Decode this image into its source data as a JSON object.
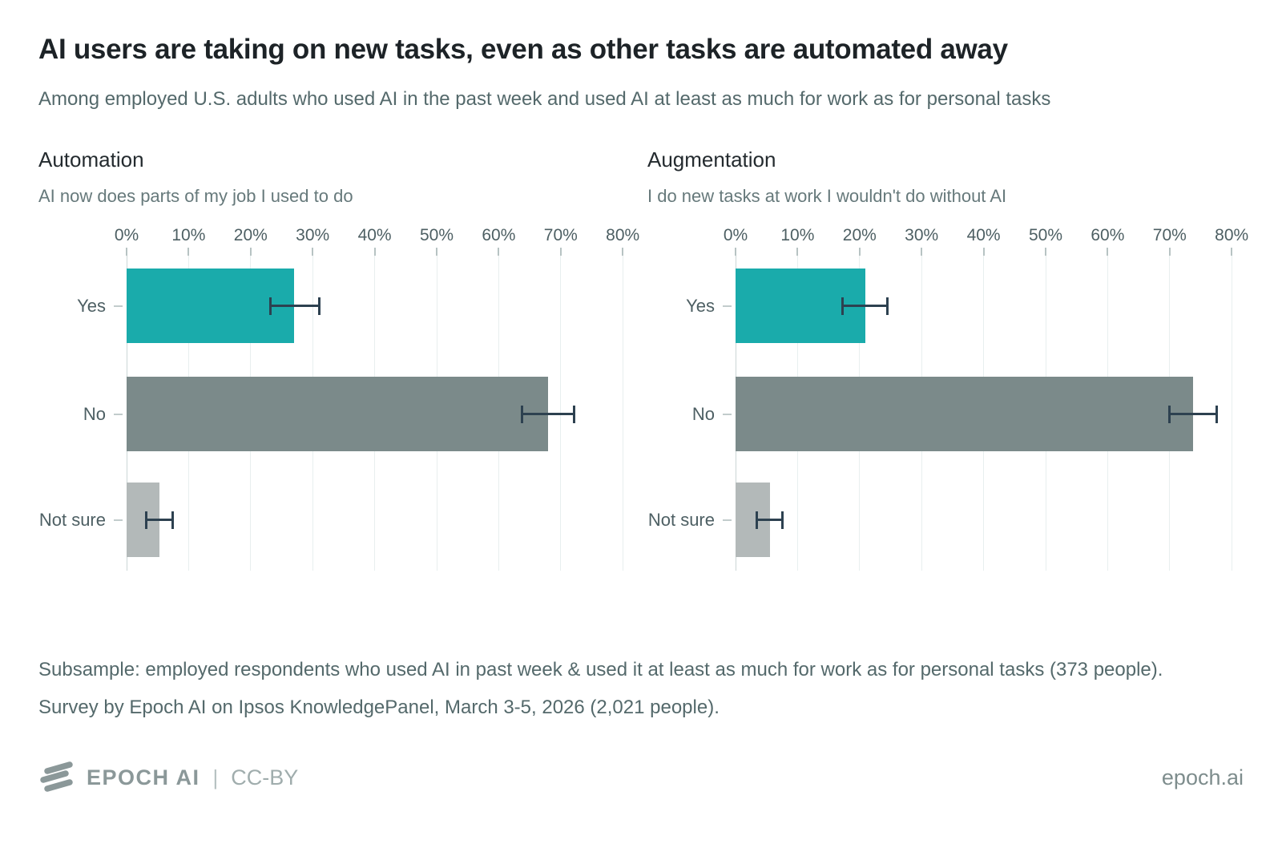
{
  "header": {
    "title": "AI users are taking on new tasks, even as other tasks are automated away",
    "subtitle": "Among employed U.S. adults who used AI in the past week and used AI at least as much for work as for personal tasks"
  },
  "chart_data": [
    {
      "type": "bar",
      "orientation": "horizontal",
      "title": "Automation",
      "subtitle": "AI now does parts of my job I used to do",
      "categories": [
        "Yes",
        "No",
        "Not sure"
      ],
      "values": [
        27.0,
        68.0,
        5.3
      ],
      "error_low": [
        23.2,
        63.7,
        3.2
      ],
      "error_high": [
        31.1,
        72.1,
        7.4
      ],
      "xlim": [
        0,
        80
      ],
      "xtick_values": [
        0,
        10,
        20,
        30,
        40,
        50,
        60,
        70,
        80
      ],
      "xtick_labels": [
        "0%",
        "10%",
        "20%",
        "30%",
        "40%",
        "50%",
        "60%",
        "70%",
        "80%"
      ],
      "grid": "vertical"
    },
    {
      "type": "bar",
      "orientation": "horizontal",
      "title": "Augmentation",
      "subtitle": "I do new tasks at work I wouldn't do without AI",
      "categories": [
        "Yes",
        "No",
        "Not sure"
      ],
      "values": [
        20.9,
        73.8,
        5.5
      ],
      "error_low": [
        17.3,
        69.9,
        3.4
      ],
      "error_high": [
        24.5,
        77.6,
        7.6
      ],
      "xlim": [
        0,
        80
      ],
      "xtick_values": [
        0,
        10,
        20,
        30,
        40,
        50,
        60,
        70,
        80
      ],
      "xtick_labels": [
        "0%",
        "10%",
        "20%",
        "30%",
        "40%",
        "50%",
        "60%",
        "70%",
        "80%"
      ],
      "grid": "vertical"
    }
  ],
  "colors": {
    "bars": [
      "#1aabab",
      "#7b8a8a",
      "#b3b9b9"
    ],
    "error_bar": "#2d4150",
    "accent_teal": "#1aabab"
  },
  "footer": {
    "note": "Subsample: employed respondents who used AI in past week & used it at least as much for work as for personal tasks (373 people). Survey by Epoch AI on Ipsos KnowledgePanel, March 3-5, 2026 (2,021 people)."
  },
  "brand": {
    "logo_text": "EPOCH AI",
    "divider": "|",
    "license": "CC-BY",
    "website": "epoch.ai"
  }
}
